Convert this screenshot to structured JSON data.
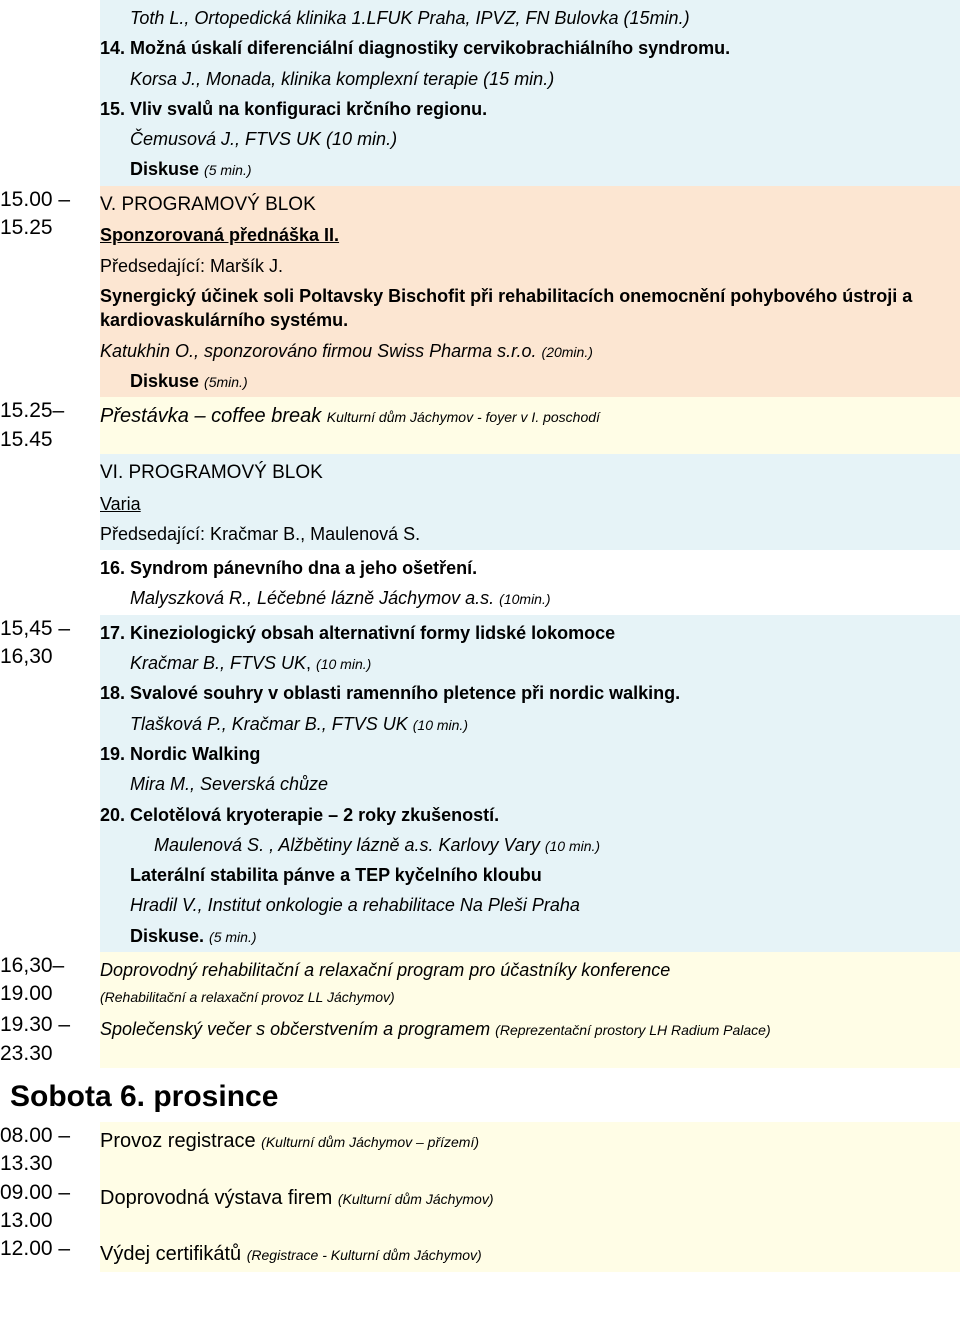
{
  "colors": {
    "bg_blue": "#e6f3f7",
    "bg_orange": "#fce6d2",
    "bg_yellow": "#fffde6",
    "bg_white": "#ffffff",
    "text": "#000000"
  },
  "rows": [
    {
      "time": "",
      "bg": "bg-blue",
      "items": [
        {
          "type": "author_indent",
          "text": "Toth L., Ortopedická klinika 1.LFUK Praha, IPVZ, FN Bulovka (15min.)"
        },
        {
          "type": "title",
          "text": "14. Možná úskalí diferenciální diagnostiky cervikobrachiálního syndromu."
        },
        {
          "type": "author_indent",
          "text": " Korsa J., Monada, klinika komplexní terapie (15 min.)"
        },
        {
          "type": "title",
          "text": "15. Vliv svalů na konfiguraci  krčního regionu."
        },
        {
          "type": "author_indent",
          "text": "Čemusová J., FTVS UK (10 min.)"
        },
        {
          "type": "diskuse",
          "label": "Diskuse ",
          "note": "(5 min.)"
        }
      ]
    },
    {
      "time": "15.00 – 15.25",
      "bg": "bg-orange",
      "items": [
        {
          "type": "program",
          "text": "V. PROGRAMOVÝ BLOK"
        },
        {
          "type": "link",
          "text": "Sponzorovaná přednáška II."
        },
        {
          "type": "plain",
          "text": "Předsedající: Maršík J."
        },
        {
          "type": "title_nl",
          "text": "Synergický účinek soli Poltavsky Bischofit při rehabilitacích onemocnění pohybového ústroji a kardiovaskulárního systému."
        },
        {
          "type": "author_small",
          "pref": "Katukhin O., sponzorováno firmou Swiss Pharma s.r.o. ",
          "note": "(20min.)"
        },
        {
          "type": "diskuse",
          "label": "Diskuse ",
          "note": "(5min.)"
        }
      ]
    },
    {
      "time": "15.25– 15.45",
      "bg": "bg-yellow",
      "items": [
        {
          "type": "break",
          "pref": "Přestávka – coffee break  ",
          "note": "Kulturní dům Jáchymov -  foyer v I. poschodí"
        }
      ]
    },
    {
      "time": "",
      "bg": "bg-blue",
      "items": [
        {
          "type": "program",
          "text": "VI. PROGRAMOVÝ BLOK"
        },
        {
          "type": "underline",
          "text": "Varia"
        },
        {
          "type": "plain",
          "text": "Předsedající:  Kračmar B., Maulenová S."
        }
      ]
    },
    {
      "time": "",
      "bg": "bg-white",
      "items": [
        {
          "type": "title",
          "text": "16.  Syndrom pánevního dna a jeho ošetření."
        },
        {
          "type": "author_mixed",
          "pref": "Malyszková R., Léčebné lázně Jáchymov a.s.    ",
          "note": "(10min.)"
        }
      ]
    },
    {
      "time": "15,45 – 16,30",
      "bg": "bg-blue",
      "items": [
        {
          "type": "title",
          "text": "17. Kineziologický obsah alternativní formy lidské lokomoce"
        },
        {
          "type": "author_indent_mixed",
          "pref": "Kračmar B., FTVS UK",
          "mid": ", ",
          "note": "(10 min.)"
        },
        {
          "type": "title",
          "text": "18.  Svalové souhry v oblasti ramenního pletence při nordic walking."
        },
        {
          "type": "author_indent_mixed",
          "pref": "Tlašková P., Kračmar B., FTVS UK  ",
          "mid": "",
          "note": "(10 min.)"
        },
        {
          "type": "title",
          "text": "19. Nordic Walking"
        },
        {
          "type": "author_indent",
          "text": "Mira M., Severská chůze"
        },
        {
          "type": "title",
          "text": "20. Celotělová kryoterapie – 2 roky zkušeností."
        },
        {
          "type": "author_indent2_mixed",
          "pref": "Maulenová S. , Alžbětiny lázně a.s. Karlovy Vary ",
          "note": "(10 min.)"
        },
        {
          "type": "title_indent",
          "text": "Laterální stabilita pánve a TEP kyčelního kloubu"
        },
        {
          "type": "author_indent",
          "text": "Hradil V., Institut onkologie a rehabilitace Na Pleši Praha"
        },
        {
          "type": "diskuse_indent",
          "label": "Diskuse.  ",
          "note": "(5 min.)"
        }
      ]
    },
    {
      "time": "16,30– 19.00",
      "bg": "bg-yellow",
      "items": [
        {
          "type": "italic_note",
          "pref": "Doprovodný rehabilitační a relaxační program pro účastníky konference",
          "note": ""
        },
        {
          "type": "small_italic",
          "text": "(Rehabilitační a relaxační provoz LL Jáchymov)"
        }
      ]
    },
    {
      "time": "19.30 – 23.30",
      "bg": "bg-yellow",
      "items": [
        {
          "type": "italic_note_inline",
          "pref": "Společenský večer s občerstvením a programem  ",
          "note": "(Reprezentační prostory LH Radium Palace)"
        }
      ]
    }
  ],
  "day_header": "Sobota 6. prosince",
  "rows2": [
    {
      "time": "08.00 – 13.30",
      "bg": "bg-yellow",
      "items": [
        {
          "type": "plain_note",
          "pref": "Provoz registrace  ",
          "note": "(Kulturní dům Jáchymov – přízemí)"
        }
      ]
    },
    {
      "time": "09.00 – 13.00",
      "bg": "bg-yellow",
      "items": [
        {
          "type": "plain_note",
          "pref": "Doprovodná výstava firem ",
          "note": "(Kulturní dům Jáchymov)"
        }
      ]
    },
    {
      "time": "12.00 –",
      "bg": "bg-yellow",
      "items": [
        {
          "type": "plain_note",
          "pref": "Výdej certifikátů ",
          "note": "(Registrace - Kulturní dům Jáchymov)"
        }
      ]
    }
  ]
}
